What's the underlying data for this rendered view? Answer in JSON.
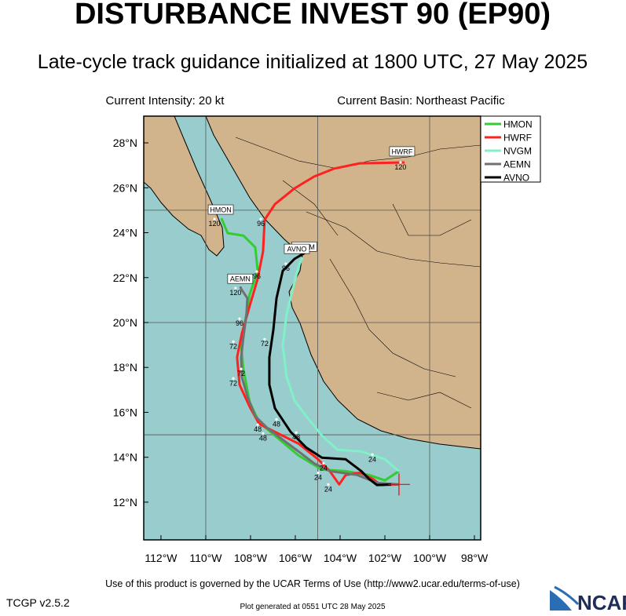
{
  "header": {
    "title": "DISTURBANCE INVEST 90 (EP90)",
    "subtitle": "Late-cycle track guidance initialized at 1800 UTC, 27 May 2025",
    "intensity": "Current Intensity: 20 kt",
    "basin": "Current Basin: Northeast Pacific"
  },
  "map": {
    "xlim": [
      -112.77,
      -97.72
    ],
    "ylim": [
      10.32,
      29.19
    ],
    "xticks": [
      {
        "value": -112,
        "label": "112°W"
      },
      {
        "value": -110,
        "label": "110°W"
      },
      {
        "value": -108,
        "label": "108°W"
      },
      {
        "value": -106,
        "label": "106°W"
      },
      {
        "value": -104,
        "label": "104°W"
      },
      {
        "value": -102,
        "label": "102°W"
      },
      {
        "value": -100,
        "label": "100°W"
      },
      {
        "value": -98,
        "label": "98°W"
      }
    ],
    "yticks": [
      {
        "value": 12,
        "label": "12°N"
      },
      {
        "value": 14,
        "label": "14°N"
      },
      {
        "value": 16,
        "label": "16°N"
      },
      {
        "value": 18,
        "label": "18°N"
      },
      {
        "value": 20,
        "label": "20°N"
      },
      {
        "value": 22,
        "label": "22°N"
      },
      {
        "value": 24,
        "label": "24°N"
      },
      {
        "value": 26,
        "label": "26°N"
      },
      {
        "value": 28,
        "label": "28°N"
      }
    ],
    "grid_lons": [
      -110,
      -105,
      -100
    ],
    "grid_lats": [
      15,
      20,
      25
    ],
    "initial_position": {
      "lon": -101.37,
      "lat": 12.79,
      "color": "#ff0000"
    },
    "series": [
      {
        "name": "HMON",
        "color": "#33cc33",
        "label_at": {
          "lon": -109.33,
          "lat": 25.03
        },
        "lon": [
          -101.37,
          -102.0,
          -102.7,
          -103.75,
          -104.81,
          -105.86,
          -106.91,
          -107.61,
          -108.04,
          -108.32,
          -108.42,
          -108.04,
          -107.68,
          -107.79,
          -108.32,
          -109.02,
          -109.3
        ],
        "lat": [
          13.38,
          12.97,
          13.21,
          13.38,
          13.45,
          14.08,
          14.96,
          15.55,
          16.46,
          17.93,
          18.98,
          21.25,
          22.3,
          23.35,
          23.87,
          23.98,
          24.64
        ]
      },
      {
        "name": "HWRF",
        "color": "#ff2020",
        "label_at": {
          "lon": -101.23,
          "lat": 27.62
        },
        "lon": [
          -101.37,
          -102.18,
          -102.53,
          -103.12,
          -103.75,
          -104.04,
          -104.46,
          -104.98,
          -105.86,
          -106.91,
          -107.61,
          -108.04,
          -108.49,
          -108.6,
          -108.39,
          -108.04,
          -107.68,
          -107.44,
          -107.37,
          -106.91,
          -106.04,
          -105.16,
          -104.28,
          -103.12,
          -101.12
        ],
        "lat": [
          12.79,
          12.76,
          13.03,
          13.31,
          13.21,
          12.79,
          13.38,
          13.91,
          14.61,
          15.13,
          15.48,
          16.25,
          17.23,
          18.45,
          19.5,
          20.73,
          21.95,
          23.17,
          24.57,
          25.27,
          25.97,
          26.5,
          26.85,
          27.09,
          27.13
        ]
      },
      {
        "name": "NVGM",
        "color": "#80f0c8",
        "label_at": {
          "lon": -105.6,
          "lat": 23.38
        },
        "lon": [
          -101.37,
          -102.0,
          -103.05,
          -104.11,
          -104.81,
          -105.51,
          -106.04,
          -106.39,
          -106.56,
          -106.39,
          -106.04,
          -105.86,
          -105.68
        ],
        "lat": [
          13.38,
          13.91,
          14.26,
          14.33,
          14.96,
          15.83,
          16.53,
          17.58,
          18.98,
          20.38,
          21.78,
          22.48,
          22.9
        ]
      },
      {
        "name": "AEMN",
        "color": "#707070",
        "label_at": {
          "lon": -108.46,
          "lat": 21.95
        },
        "lon": [
          -101.37,
          -102.35,
          -103.23,
          -104.46,
          -105.16,
          -105.86,
          -106.56,
          -107.26,
          -107.79,
          -108.14,
          -108.39,
          -108.42,
          -108.32,
          -108.18,
          -108.14,
          -108.42,
          -108.46
        ],
        "lat": [
          12.79,
          12.86,
          13.21,
          13.38,
          13.73,
          14.26,
          14.78,
          15.31,
          15.83,
          16.71,
          17.58,
          18.45,
          19.33,
          20.38,
          21.08,
          21.5,
          21.6
        ]
      },
      {
        "name": "AVNO",
        "color": "#000000",
        "label_at": {
          "lon": -105.93,
          "lat": 23.28
        },
        "lon": [
          -101.72,
          -102.35,
          -102.7,
          -103.05,
          -103.75,
          -104.81,
          -105.51,
          -106.21,
          -106.91,
          -107.16,
          -107.16,
          -106.98,
          -106.84,
          -106.56,
          -106.04,
          -105.58
        ],
        "lat": [
          12.79,
          12.76,
          13.03,
          13.38,
          13.91,
          13.98,
          14.43,
          15.13,
          16.18,
          17.23,
          18.45,
          19.68,
          21.08,
          22.3,
          22.83,
          23.1
        ]
      }
    ],
    "hour_labels": [
      {
        "text": "24",
        "lon": -102.56,
        "lat": 13.91
      },
      {
        "text": "24",
        "lon": -104.74,
        "lat": 13.52
      },
      {
        "text": "24",
        "lon": -104.98,
        "lat": 13.1
      },
      {
        "text": "24",
        "lon": -104.53,
        "lat": 12.58
      },
      {
        "text": "48",
        "lon": -106.84,
        "lat": 15.48
      },
      {
        "text": "48",
        "lon": -107.68,
        "lat": 15.24
      },
      {
        "text": "48",
        "lon": -107.44,
        "lat": 14.85
      },
      {
        "text": "48",
        "lon": -105.96,
        "lat": 14.89
      },
      {
        "text": "72",
        "lon": -108.77,
        "lat": 18.94
      },
      {
        "text": "72",
        "lon": -108.42,
        "lat": 17.72
      },
      {
        "text": "72",
        "lon": -108.77,
        "lat": 17.3
      },
      {
        "text": "72",
        "lon": -107.37,
        "lat": 19.05
      },
      {
        "text": "96",
        "lon": -108.49,
        "lat": 19.96
      },
      {
        "text": "96",
        "lon": -107.72,
        "lat": 22.06
      },
      {
        "text": "96",
        "lon": -107.54,
        "lat": 24.4
      },
      {
        "text": "96",
        "lon": -106.42,
        "lat": 22.41
      },
      {
        "text": "120",
        "lon": -108.67,
        "lat": 21.32
      },
      {
        "text": "120",
        "lon": -109.61,
        "lat": 24.4
      },
      {
        "text": "120",
        "lon": -101.3,
        "lat": 26.92
      }
    ]
  },
  "footer": {
    "terms": "Use of this product is governed by the UCAR Terms of Use (http://www2.ucar.edu/terms-of-use)",
    "version": "TCGP v2.5.2",
    "generated": "Plot generated at 0551 UTC  28 May 2025",
    "logo": "NCAR"
  }
}
